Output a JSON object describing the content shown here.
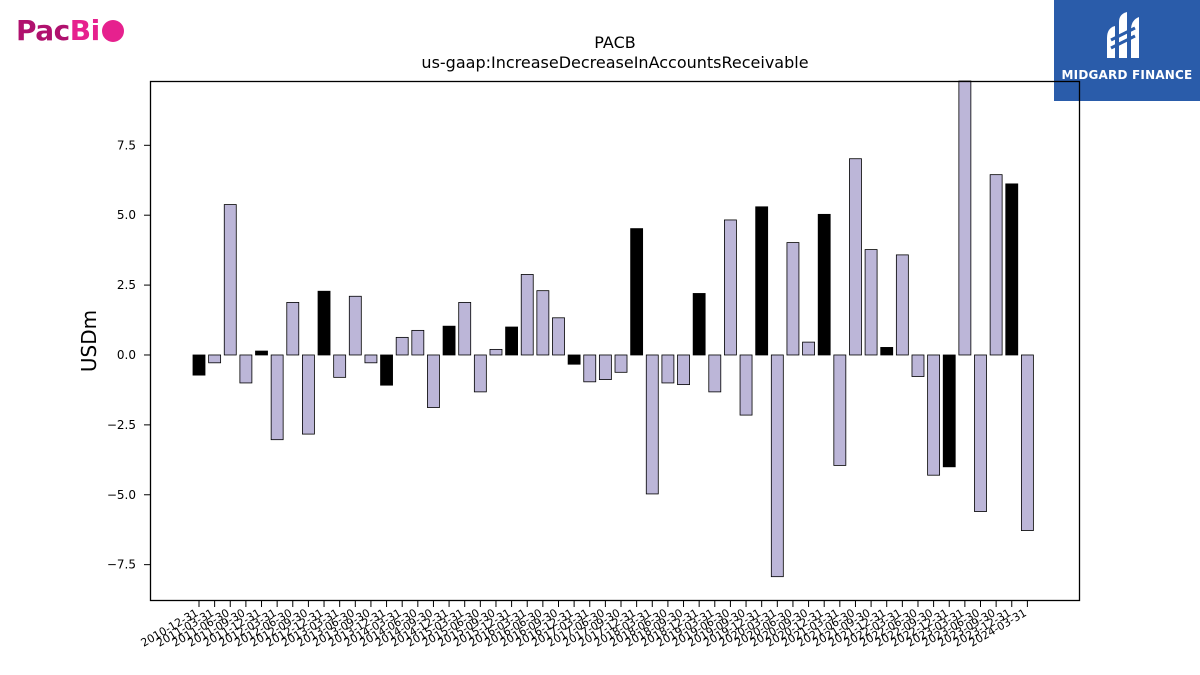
{
  "logos": {
    "left_text_a": "Pac",
    "left_text_b": "Bi",
    "right_text": "MIDGARD FINANCE"
  },
  "colors": {
    "positive_bar": "#bcb6d8",
    "highlight_bar": "#000000",
    "bar_edge": "#000000",
    "pacbio_magenta": "#b0116e",
    "pacbio_pink": "#e6218e",
    "midgard_blue": "#2a5caa"
  },
  "chart_data": {
    "type": "bar",
    "title": "PACB",
    "subtitle": "us-gaap:IncreaseDecreaseInAccountsReceivable",
    "xlabel": "",
    "ylabel": "USDm",
    "ylim": [
      -8.8,
      9.8
    ],
    "yticks": [
      -7.5,
      -5.0,
      -2.5,
      0.0,
      2.5,
      5.0,
      7.5
    ],
    "ytick_labels": [
      "−7.5",
      "−5.0",
      "−2.5",
      "0.0",
      "2.5",
      "5.0",
      "7.5"
    ],
    "grid": false,
    "legend": "none",
    "categories": [
      "2010-12-31",
      "2011-03-31",
      "2011-06-30",
      "2011-09-30",
      "2011-12-31",
      "2012-03-31",
      "2012-06-30",
      "2012-09-30",
      "2012-12-31",
      "2013-03-31",
      "2013-06-30",
      "2013-09-30",
      "2013-12-31",
      "2014-03-31",
      "2014-06-30",
      "2014-09-30",
      "2014-12-31",
      "2015-03-31",
      "2015-06-30",
      "2015-09-30",
      "2015-12-31",
      "2016-03-31",
      "2016-06-30",
      "2016-09-30",
      "2016-12-31",
      "2017-03-31",
      "2017-06-30",
      "2017-09-30",
      "2017-12-31",
      "2018-03-31",
      "2018-06-30",
      "2018-09-30",
      "2018-12-31",
      "2019-03-31",
      "2019-06-30",
      "2019-09-30",
      "2019-12-31",
      "2020-03-31",
      "2020-06-30",
      "2020-09-30",
      "2020-12-31",
      "2021-03-31",
      "2021-06-30",
      "2021-09-30",
      "2021-12-31",
      "2022-03-31",
      "2022-06-30",
      "2022-09-30",
      "2022-12-31",
      "2023-03-31",
      "2023-06-30",
      "2023-09-30",
      "2023-12-31",
      "2024-03-31"
    ],
    "values": [
      -0.72,
      -0.28,
      5.38,
      -1.0,
      0.14,
      -3.03,
      1.88,
      -2.83,
      2.28,
      -0.8,
      2.1,
      -0.28,
      -1.08,
      0.63,
      0.88,
      -1.88,
      1.03,
      1.88,
      -1.32,
      0.2,
      1.0,
      2.88,
      2.3,
      1.33,
      -0.33,
      -0.96,
      -0.88,
      -0.62,
      4.52,
      -4.97,
      -1.0,
      -1.06,
      2.2,
      -1.32,
      4.83,
      -2.15,
      5.3,
      -7.93,
      4.02,
      0.46,
      5.03,
      -3.95,
      7.02,
      3.77,
      0.27,
      3.58,
      -0.77,
      -4.3,
      -4.0,
      9.8,
      -5.6,
      6.45,
      6.12,
      -6.28
    ],
    "highlighted": [
      true,
      false,
      false,
      false,
      true,
      false,
      false,
      false,
      true,
      false,
      false,
      false,
      true,
      false,
      false,
      false,
      true,
      false,
      false,
      false,
      true,
      false,
      false,
      false,
      true,
      false,
      false,
      false,
      true,
      false,
      false,
      false,
      true,
      false,
      false,
      false,
      true,
      false,
      false,
      false,
      true,
      false,
      false,
      false,
      true,
      false,
      false,
      false,
      true,
      false,
      false,
      false,
      true,
      false
    ]
  }
}
